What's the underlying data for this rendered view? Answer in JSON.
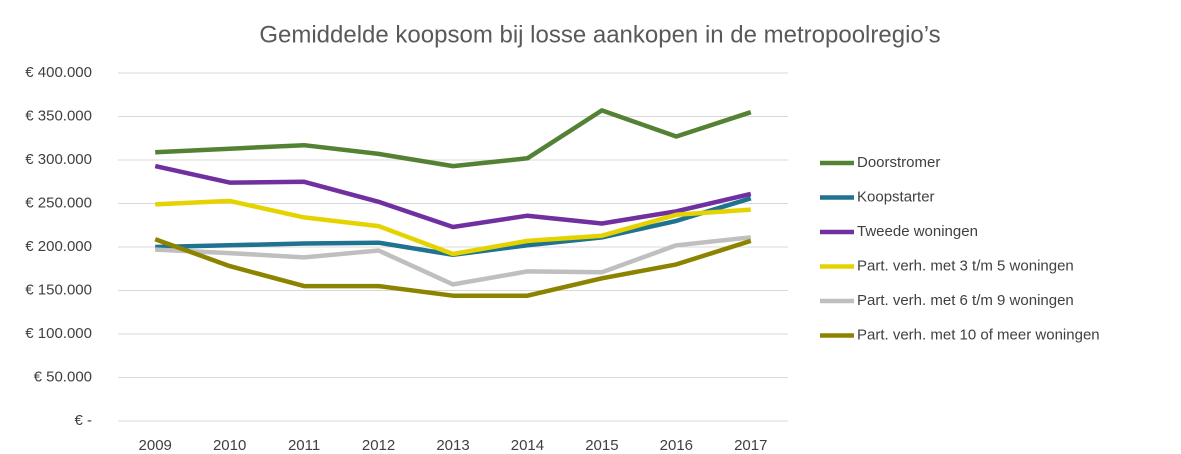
{
  "chart_data": {
    "type": "line",
    "title": "Gemiddelde koopsom bij losse aankopen in de metropoolregio’s",
    "categories": [
      "2009",
      "2010",
      "2011",
      "2012",
      "2013",
      "2014",
      "2015",
      "2016",
      "2017"
    ],
    "series": [
      {
        "name": "Doorstromer",
        "color": "#548235",
        "values": [
          309000,
          313000,
          317000,
          307000,
          293000,
          302000,
          357000,
          327000,
          355000
        ]
      },
      {
        "name": "Koopstarter",
        "color": "#1f7391",
        "values": [
          200000,
          202000,
          204000,
          205000,
          191000,
          202000,
          211000,
          230000,
          256000
        ]
      },
      {
        "name": "Tweede woningen",
        "color": "#7030a0",
        "values": [
          293000,
          274000,
          275000,
          252000,
          223000,
          236000,
          227000,
          241000,
          261000
        ]
      },
      {
        "name": "Part. verh. met 3 t/m 5 woningen",
        "color": "#e5d300",
        "values": [
          249000,
          253000,
          234000,
          224000,
          192000,
          207000,
          213000,
          237000,
          243000
        ]
      },
      {
        "name": "Part. verh. met 6 t/m 9 woningen",
        "color": "#bfbfbf",
        "values": [
          197000,
          193000,
          188000,
          196000,
          157000,
          172000,
          171000,
          202000,
          211000
        ]
      },
      {
        "name": "Part. verh. met 10 of meer woningen",
        "color": "#8c8300",
        "values": [
          209000,
          178000,
          155000,
          155000,
          144000,
          144000,
          164000,
          180000,
          207000
        ]
      }
    ],
    "ylim": [
      0,
      400000
    ],
    "yticks": [
      {
        "value": 0,
        "label": "€ -"
      },
      {
        "value": 50000,
        "label": "€ 50.000"
      },
      {
        "value": 100000,
        "label": "€ 100.000"
      },
      {
        "value": 150000,
        "label": "€ 150.000"
      },
      {
        "value": 200000,
        "label": "€ 200.000"
      },
      {
        "value": 250000,
        "label": "€ 250.000"
      },
      {
        "value": 300000,
        "label": "€ 300.000"
      },
      {
        "value": 350000,
        "label": "€ 350.000"
      },
      {
        "value": 400000,
        "label": "€ 400.000"
      }
    ],
    "grid": true,
    "legend": "right"
  }
}
